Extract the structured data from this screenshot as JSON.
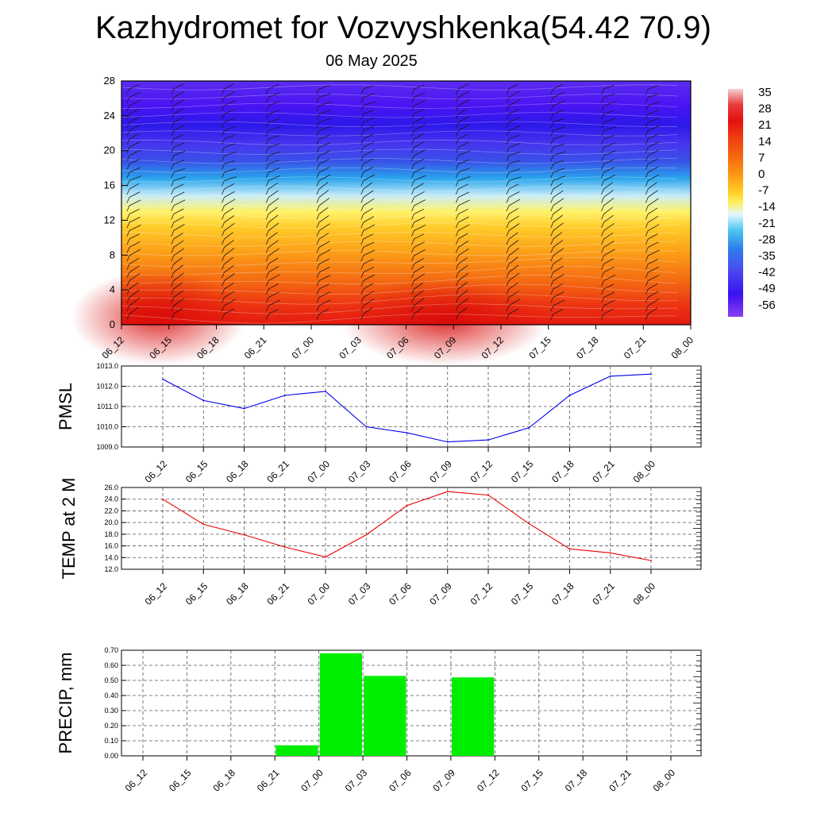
{
  "title": "Kazhydromet for Vozvyshkenka(54.42 70.9)",
  "subtitle": "06 May 2025",
  "colors": {
    "pmsl_line": "#0000ee",
    "temp_line": "#ee0000",
    "precip_bar": "#00ee00",
    "axis": "#000000",
    "grid": "#555555"
  },
  "chart_data": [
    {
      "type": "heatmap",
      "name": "upper-air-temperature",
      "x_labels": [
        "06_12",
        "06_15",
        "06_18",
        "06_21",
        "07_00",
        "07_03",
        "07_06",
        "07_09",
        "07_12",
        "07_15",
        "07_18",
        "07_21",
        "08_00"
      ],
      "y_ticks": [
        "0",
        "4",
        "8",
        "12",
        "16",
        "20",
        "24",
        "28"
      ],
      "ylim": [
        0,
        28
      ],
      "colorbar_labels": [
        "35",
        "28",
        "21",
        "14",
        "7",
        "0",
        "-7",
        "-14",
        "-21",
        "-28",
        "-35",
        "-42",
        "-49",
        "-56"
      ],
      "colorbar_colors": [
        "#f2c2c2",
        "#e83a3a",
        "#e51010",
        "#ee3b10",
        "#f56a10",
        "#fb9a14",
        "#ffcb25",
        "#fff060",
        "#ddf2ff",
        "#4bc7f0",
        "#2f7fea",
        "#4a47ef",
        "#3a10ef",
        "#7a2ff0"
      ],
      "wind_barbs": true
    },
    {
      "type": "line",
      "name": "PMSL",
      "ylabel": "PMSL",
      "x_labels": [
        "06_12",
        "06_15",
        "06_18",
        "06_21",
        "07_00",
        "07_03",
        "07_06",
        "07_09",
        "07_12",
        "07_15",
        "07_18",
        "07_21",
        "08_00"
      ],
      "y_ticks": [
        "1013.0",
        "1012.0",
        "1011.0",
        "1010.0",
        "1009.0"
      ],
      "ylim": [
        1009.0,
        1013.0
      ],
      "values": [
        1012.35,
        1011.3,
        1010.9,
        1011.55,
        1011.75,
        1010.0,
        1009.7,
        1009.25,
        1009.35,
        1009.95,
        1011.55,
        1012.5,
        1012.6
      ],
      "grid": true
    },
    {
      "type": "line",
      "name": "TEMP at 2 M",
      "ylabel": "TEMP at 2 M",
      "x_labels": [
        "06_12",
        "06_15",
        "06_18",
        "06_21",
        "07_00",
        "07_03",
        "07_06",
        "07_09",
        "07_12",
        "07_15",
        "07_18",
        "07_21",
        "08_00"
      ],
      "y_ticks": [
        "26.0",
        "24.0",
        "22.0",
        "20.0",
        "18.0",
        "16.0",
        "14.0",
        "12.0"
      ],
      "ylim": [
        12.0,
        26.0
      ],
      "values": [
        24.0,
        19.7,
        17.9,
        15.8,
        14.1,
        17.9,
        22.9,
        25.3,
        24.7,
        19.8,
        15.5,
        14.8,
        13.5
      ],
      "grid": true
    },
    {
      "type": "bar",
      "name": "PRECIP",
      "ylabel": "PRECIP, mm",
      "x_labels": [
        "06_12",
        "06_15",
        "06_18",
        "06_21",
        "07_00",
        "07_03",
        "07_06",
        "07_09",
        "07_12",
        "07_15",
        "07_18",
        "07_21",
        "08_00"
      ],
      "y_ticks": [
        "0.70",
        "0.60",
        "0.50",
        "0.40",
        "0.30",
        "0.20",
        "0.10",
        "0.00"
      ],
      "ylim": [
        0.0,
        0.7
      ],
      "values": [
        0,
        0,
        0,
        0.07,
        0.68,
        0.53,
        0,
        0.52,
        0,
        0,
        0,
        0
      ],
      "grid": true
    }
  ]
}
